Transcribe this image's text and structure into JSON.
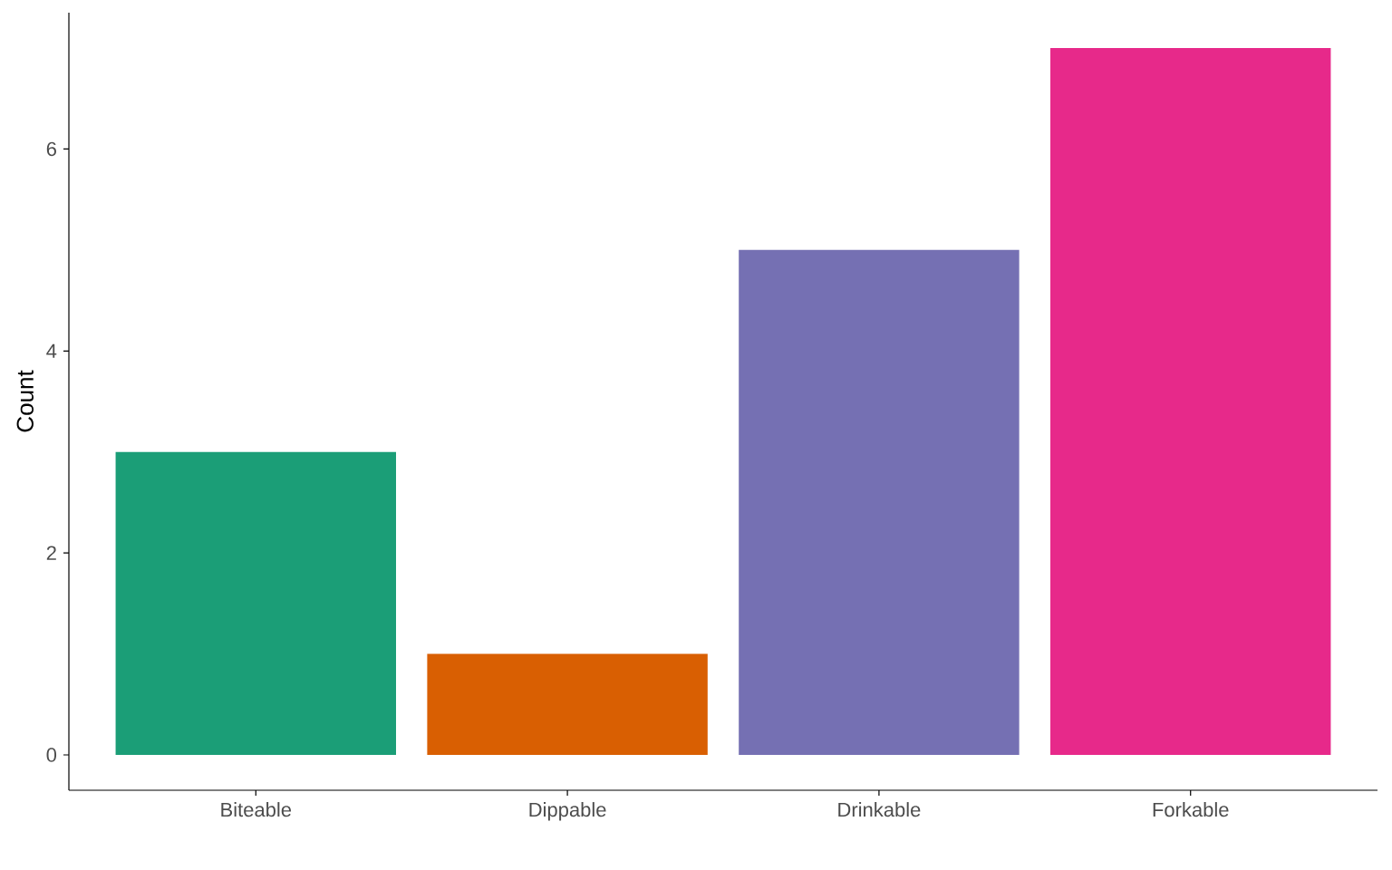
{
  "chart_data": {
    "type": "bar",
    "ylabel": "Count",
    "categories": [
      "Biteable",
      "Dippable",
      "Drinkable",
      "Forkable"
    ],
    "values": [
      3,
      1,
      5,
      7
    ],
    "colors": [
      "#1b9e77",
      "#d95f02",
      "#7570b3",
      "#e7298a"
    ],
    "ylim": [
      -0.35,
      7.35
    ],
    "yticks": [
      0,
      2,
      4,
      6
    ]
  }
}
